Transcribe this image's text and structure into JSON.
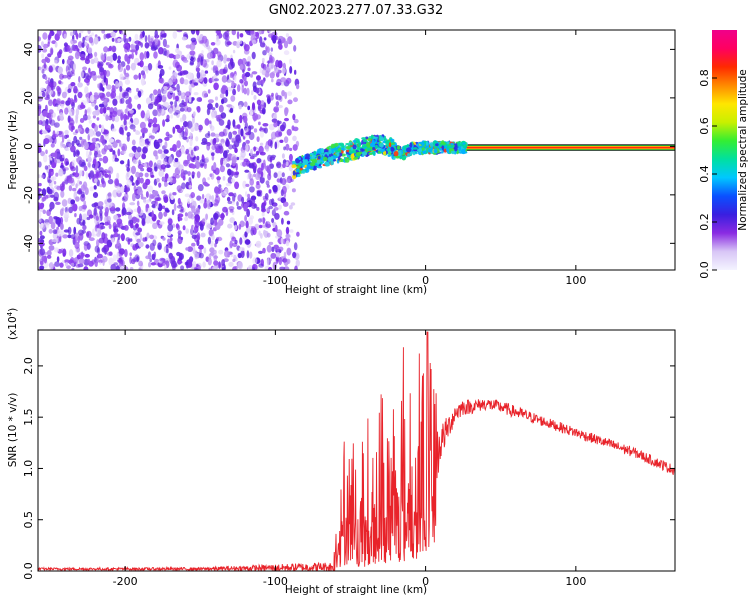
{
  "title": "GN02.2023.277.07.33.G32",
  "chart_data": [
    {
      "type": "heatmap",
      "xlabel": "Height of straight line (km)",
      "ylabel": "Frequency (Hz)",
      "xlim": [
        -258,
        166
      ],
      "ylim": [
        -51,
        48
      ],
      "xticks": [
        -200,
        -100,
        0,
        100
      ],
      "yticks": [
        -40,
        -20,
        0,
        20,
        40
      ],
      "grid": false,
      "noise_region_x": [
        -258,
        -85
      ],
      "signal_trace": {
        "x": [
          -88,
          -80,
          -70,
          -60,
          -50,
          -40,
          -30,
          -25,
          -20,
          -15,
          -10,
          0,
          10,
          20,
          25,
          166
        ],
        "freq": [
          -10,
          -7,
          -5,
          -3,
          -2,
          0,
          1,
          0,
          -2,
          -3,
          -1,
          -0.5,
          -0.5,
          -0.5,
          -0.5,
          -0.5
        ]
      },
      "steady_line_x": [
        25,
        166
      ],
      "colorbar": {
        "label": "Normalized spectral amplitude",
        "range": [
          0.0,
          1.0
        ],
        "ticks": [
          "0.0",
          "0.2",
          "0.4",
          "0.6",
          "0.8"
        ],
        "colors": [
          "#f4f4ff",
          "#d8c6f6",
          "#8a2be2",
          "#3a1fe0",
          "#0a50ff",
          "#00c8ff",
          "#00e0a0",
          "#33ee33",
          "#c8f000",
          "#ffe600",
          "#ff8a00",
          "#ff2a00",
          "#ff0060",
          "#f0008a"
        ]
      }
    },
    {
      "type": "line",
      "xlabel": "Height of straight line (km)",
      "ylabel": "SNR (10 * v/v)",
      "scale_note_base": "(x10",
      "scale_note_exp": "4",
      "scale_note_close": ")",
      "xlim": [
        -258,
        166
      ],
      "ylim": [
        0,
        2.35
      ],
      "xticks": [
        -200,
        -100,
        0,
        100
      ],
      "yticks": [
        "0.0",
        "0.5",
        "1.0",
        "1.5",
        "2.0"
      ],
      "ytick_values": [
        0,
        0.5,
        1.0,
        1.5,
        2.0
      ],
      "grid": false,
      "series": [
        {
          "color": "#e8232a",
          "envelope": {
            "x": [
              -258,
              -150,
              -62,
              -57,
              -52,
              -45,
              -40,
              -35,
              -30,
              -25,
              -20,
              -15,
              -10,
              -5,
              0,
              2,
              5,
              10,
              15,
              20,
              25,
              30,
              40,
              50,
              60,
              80,
              100,
              120,
              140,
              155,
              166
            ],
            "base": [
              0.02,
              0.02,
              0.04,
              0.15,
              0.25,
              0.18,
              0.15,
              0.2,
              0.3,
              0.25,
              0.35,
              0.35,
              0.4,
              0.5,
              0.6,
              0.7,
              1.0,
              1.25,
              1.4,
              1.55,
              1.6,
              1.6,
              1.63,
              1.6,
              1.55,
              1.45,
              1.35,
              1.25,
              1.15,
              1.05,
              0.98
            ],
            "amp": [
              0.012,
              0.015,
              0.05,
              0.6,
              0.8,
              0.5,
              0.7,
              0.8,
              0.9,
              0.8,
              0.9,
              0.9,
              0.9,
              0.9,
              0.8,
              0.6,
              0.4,
              0.18,
              0.12,
              0.1,
              0.08,
              0.07,
              0.06,
              0.06,
              0.06,
              0.05,
              0.05,
              0.05,
              0.05,
              0.05,
              0.05
            ]
          },
          "spike": {
            "x": 1.2,
            "y": 2.33
          }
        }
      ]
    }
  ]
}
